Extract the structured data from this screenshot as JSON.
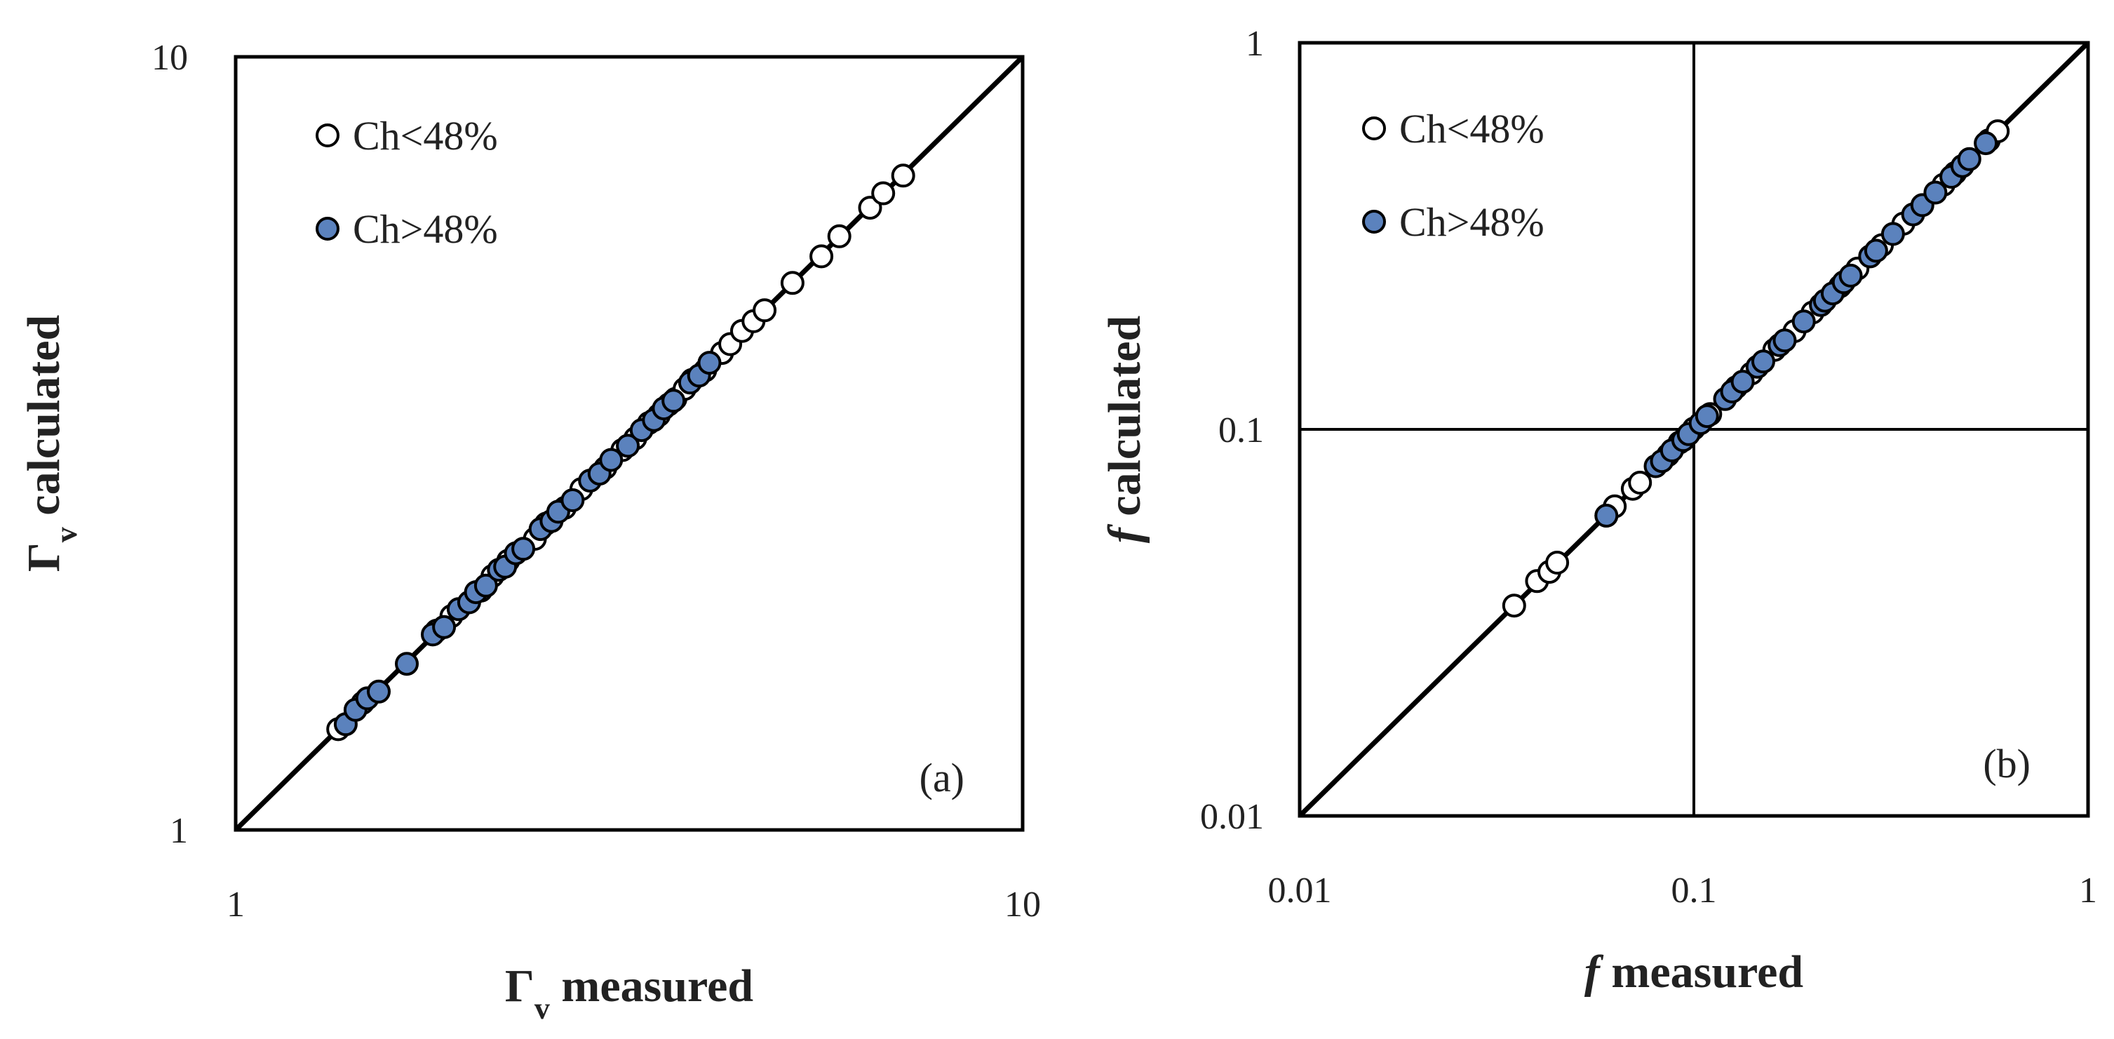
{
  "chart_data": [
    {
      "type": "scatter",
      "panel_label": "(a)",
      "xlabel_symbol": "Γ",
      "xlabel_sub": "v",
      "xlabel_rest": " measured",
      "ylabel_symbol": "Γ",
      "ylabel_sub": "v",
      "ylabel_rest": " calculated",
      "xscale": "log",
      "yscale": "log",
      "xlim": [
        1,
        10
      ],
      "ylim": [
        1,
        10
      ],
      "xticks": [
        "1",
        "10"
      ],
      "yticks": [
        "1",
        "10"
      ],
      "grid": false,
      "reference_line": "y = x",
      "legend_position": "top-left",
      "colors": {
        "low": "#ffffff",
        "high": "#5b82bd",
        "edge": "#000000"
      },
      "series": [
        {
          "name": "Ch<48%",
          "x": [
            1.35,
            1.45,
            1.8,
            1.88,
            2.05,
            2.12,
            2.22,
            2.4,
            2.48,
            2.62,
            2.75,
            2.95,
            3.1,
            3.22,
            3.35,
            3.45,
            3.55,
            3.62,
            3.72,
            3.8,
            3.95,
            4.15,
            4.25,
            4.4,
            4.55,
            4.7,
            5.1,
            5.55,
            5.85,
            6.4,
            6.65,
            7.05
          ],
          "y": [
            1.35,
            1.46,
            1.81,
            1.89,
            2.04,
            2.13,
            2.23,
            2.38,
            2.49,
            2.61,
            2.76,
            2.94,
            3.1,
            3.21,
            3.36,
            3.44,
            3.55,
            3.61,
            3.72,
            3.82,
            3.93,
            4.14,
            4.25,
            4.42,
            4.55,
            4.7,
            5.1,
            5.52,
            5.86,
            6.38,
            6.66,
            7.02
          ]
        },
        {
          "name": "Ch>48%",
          "x": [
            1.38,
            1.42,
            1.47,
            1.52,
            1.65,
            1.78,
            1.84,
            1.92,
            1.98,
            2.02,
            2.08,
            2.16,
            2.2,
            2.27,
            2.32,
            2.44,
            2.52,
            2.57,
            2.68,
            2.82,
            2.9,
            3.0,
            3.15,
            3.28,
            3.4,
            3.5,
            3.6,
            3.78,
            3.88,
            4.0
          ],
          "y": [
            1.37,
            1.43,
            1.48,
            1.51,
            1.64,
            1.79,
            1.83,
            1.93,
            1.97,
            2.03,
            2.07,
            2.17,
            2.19,
            2.28,
            2.31,
            2.45,
            2.51,
            2.58,
            2.67,
            2.83,
            2.89,
            3.01,
            3.14,
            3.29,
            3.39,
            3.51,
            3.59,
            3.79,
            3.87,
            4.02
          ]
        }
      ]
    },
    {
      "type": "scatter",
      "panel_label": "(b)",
      "xlabel_symbol": "f",
      "xlabel_rest": " measured",
      "ylabel_symbol": "f",
      "ylabel_rest": " calculated",
      "xscale": "log",
      "yscale": "log",
      "xlim": [
        0.01,
        1
      ],
      "ylim": [
        0.01,
        1
      ],
      "xticks": [
        "0.01",
        "0.1",
        "1"
      ],
      "yticks": [
        "0.01",
        "0.1",
        "1"
      ],
      "grid": true,
      "reference_line": "y = x",
      "legend_position": "top-left",
      "colors": {
        "low": "#ffffff",
        "high": "#5b82bd",
        "edge": "#000000"
      },
      "series": [
        {
          "name": "Ch<48%",
          "x": [
            0.035,
            0.04,
            0.043,
            0.045,
            0.06,
            0.063,
            0.07,
            0.073,
            0.086,
            0.092,
            0.1,
            0.11,
            0.128,
            0.14,
            0.16,
            0.18,
            0.2,
            0.235,
            0.26,
            0.3,
            0.34,
            0.43,
            0.46,
            0.56,
            0.59
          ],
          "y": [
            0.035,
            0.0405,
            0.0428,
            0.0452,
            0.0598,
            0.0632,
            0.0702,
            0.0728,
            0.0858,
            0.0925,
            0.1005,
            0.1095,
            0.1285,
            0.1395,
            0.1605,
            0.1795,
            0.2005,
            0.2345,
            0.2605,
            0.2995,
            0.3405,
            0.4295,
            0.4605,
            0.5595,
            0.5905
          ]
        },
        {
          "name": "Ch>48%",
          "x": [
            0.06,
            0.08,
            0.083,
            0.088,
            0.094,
            0.097,
            0.104,
            0.108,
            0.12,
            0.125,
            0.133,
            0.145,
            0.15,
            0.165,
            0.17,
            0.19,
            0.21,
            0.215,
            0.225,
            0.24,
            0.25,
            0.28,
            0.29,
            0.32,
            0.36,
            0.38,
            0.41,
            0.45,
            0.48,
            0.5,
            0.55
          ],
          "y": [
            0.0598,
            0.0803,
            0.0828,
            0.0882,
            0.0938,
            0.0972,
            0.1038,
            0.1082,
            0.1198,
            0.1253,
            0.1328,
            0.1452,
            0.1498,
            0.1652,
            0.1698,
            0.1902,
            0.2098,
            0.2152,
            0.2248,
            0.2402,
            0.2498,
            0.2802,
            0.2898,
            0.3202,
            0.3598,
            0.3802,
            0.4098,
            0.4502,
            0.4798,
            0.5002,
            0.5498
          ]
        }
      ]
    }
  ]
}
